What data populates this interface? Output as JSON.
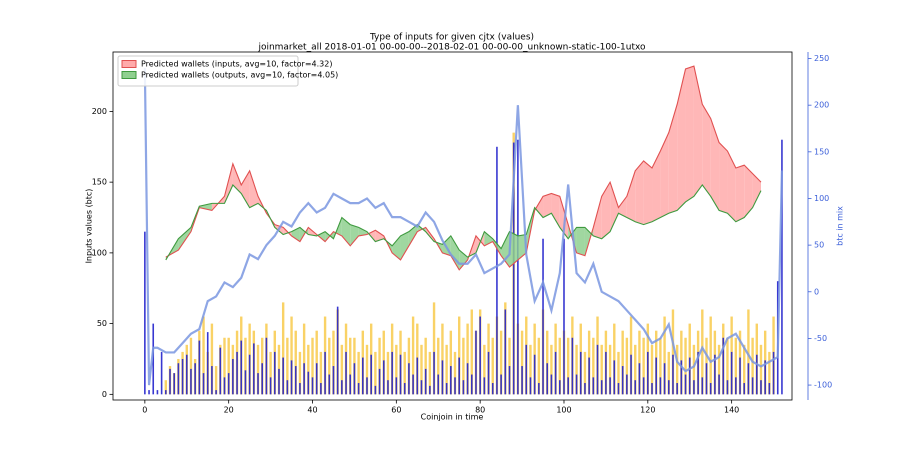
{
  "chart_data": {
    "type": "line",
    "title": "Type of inputs for given cjtx (values)",
    "subtitle": "joinmarket_all 2018-01-01 00-00-00--2018-02-01 00-00-00_unknown-static-100-1utxo",
    "xlabel": "Coinjoin in time",
    "ylabel": "Inputs values (btc)",
    "y2label": "btc in mix",
    "xlim": [
      -7.6,
      154.4
    ],
    "xticks": [
      0,
      20,
      40,
      60,
      80,
      100,
      120,
      140
    ],
    "ylim": [
      -4,
      242
    ],
    "yticks": [
      0,
      50,
      100,
      150,
      200
    ],
    "y2lim": [
      -116,
      257
    ],
    "y2ticks": [
      -100,
      -50,
      0,
      50,
      100,
      150,
      200,
      250
    ],
    "legend": "upper left",
    "series": [
      {
        "name": "Predicted wallets (inputs, avg=10, factor=4.32)",
        "color": "#e05050",
        "fill": "#ffaaaa",
        "x": [
          5,
          8,
          11,
          13,
          16,
          19,
          21,
          23,
          25,
          27,
          29,
          31,
          33,
          35,
          37,
          39,
          41,
          43,
          45,
          47,
          49,
          51,
          53,
          55,
          57,
          59,
          61,
          63,
          65,
          67,
          69,
          71,
          73,
          75,
          77,
          79,
          81,
          83,
          85,
          87,
          89,
          91,
          93,
          95,
          97,
          99,
          101,
          103,
          105,
          107,
          109,
          111,
          113,
          115,
          117,
          119,
          121,
          123,
          125,
          127,
          129,
          131,
          133,
          135,
          137,
          139,
          141,
          143,
          145,
          147
        ],
        "values": [
          97,
          102,
          115,
          132,
          130,
          140,
          163,
          148,
          158,
          140,
          128,
          120,
          118,
          112,
          108,
          118,
          113,
          108,
          115,
          112,
          105,
          112,
          113,
          116,
          112,
          100,
          95,
          105,
          115,
          118,
          110,
          100,
          98,
          88,
          95,
          112,
          105,
          108,
          98,
          90,
          95,
          100,
          130,
          140,
          142,
          140,
          120,
          100,
          98,
          118,
          140,
          150,
          132,
          140,
          158,
          165,
          160,
          172,
          185,
          205,
          230,
          232,
          205,
          195,
          178,
          172,
          160,
          162,
          156,
          150
        ]
      },
      {
        "name": "Predicted wallets (outputs, avg=10, factor=4.05)",
        "color": "#3f9a3f",
        "fill": "#8fd08f",
        "x": [
          5,
          8,
          11,
          13,
          16,
          19,
          21,
          23,
          25,
          27,
          29,
          31,
          33,
          35,
          37,
          39,
          41,
          43,
          45,
          47,
          49,
          51,
          53,
          55,
          57,
          59,
          61,
          63,
          65,
          67,
          69,
          71,
          73,
          75,
          77,
          79,
          81,
          83,
          85,
          87,
          89,
          91,
          93,
          95,
          97,
          99,
          101,
          103,
          105,
          107,
          109,
          111,
          113,
          115,
          117,
          119,
          121,
          123,
          125,
          127,
          129,
          131,
          133,
          135,
          137,
          139,
          141,
          143,
          145,
          147
        ],
        "values": [
          95,
          110,
          118,
          133,
          135,
          135,
          148,
          142,
          132,
          135,
          130,
          118,
          113,
          115,
          118,
          113,
          112,
          115,
          110,
          125,
          120,
          118,
          115,
          108,
          110,
          105,
          112,
          115,
          120,
          115,
          108,
          106,
          112,
          102,
          97,
          100,
          115,
          110,
          103,
          115,
          112,
          113,
          132,
          125,
          128,
          118,
          110,
          118,
          118,
          112,
          110,
          115,
          128,
          125,
          122,
          120,
          122,
          125,
          128,
          130,
          136,
          140,
          148,
          140,
          130,
          128,
          122,
          125,
          132,
          144
        ]
      },
      {
        "color": "#7a96e0",
        "axis": "y2",
        "x": [
          0,
          1,
          2,
          3,
          5,
          7,
          9,
          11,
          13,
          15,
          17,
          19,
          21,
          23,
          25,
          27,
          29,
          31,
          33,
          35,
          37,
          39,
          41,
          43,
          45,
          47,
          49,
          51,
          53,
          55,
          57,
          59,
          61,
          63,
          65,
          67,
          69,
          71,
          73,
          75,
          77,
          79,
          81,
          83,
          85,
          87,
          89,
          91,
          93,
          95,
          97,
          99,
          101,
          103,
          105,
          107,
          109,
          111,
          113,
          115,
          117,
          119,
          121,
          123,
          125,
          127,
          129,
          131,
          133,
          135,
          137,
          139,
          141,
          143,
          145,
          147,
          149,
          151,
          152
        ],
        "values": [
          240,
          -100,
          -60,
          -60,
          -65,
          -65,
          -55,
          -45,
          -40,
          -10,
          -5,
          10,
          5,
          15,
          40,
          35,
          50,
          60,
          75,
          70,
          85,
          95,
          85,
          90,
          105,
          100,
          95,
          95,
          100,
          90,
          95,
          80,
          80,
          75,
          70,
          85,
          75,
          55,
          40,
          30,
          30,
          40,
          20,
          25,
          30,
          40,
          200,
          40,
          -10,
          10,
          -20,
          20,
          115,
          20,
          10,
          30,
          0,
          -5,
          -10,
          -20,
          -30,
          -40,
          -55,
          -50,
          -35,
          -75,
          -85,
          -80,
          -60,
          -75,
          -70,
          -50,
          -45,
          -60,
          -75,
          -80,
          -75,
          -70,
          130
        ]
      }
    ],
    "bars": {
      "x": [
        0,
        1,
        2,
        3,
        4,
        5,
        6,
        7,
        8,
        9,
        10,
        11,
        12,
        13,
        14,
        15,
        16,
        17,
        18,
        19,
        20,
        21,
        22,
        23,
        24,
        25,
        26,
        27,
        28,
        29,
        30,
        31,
        32,
        33,
        34,
        35,
        36,
        37,
        38,
        39,
        40,
        41,
        42,
        43,
        44,
        45,
        46,
        47,
        48,
        49,
        50,
        51,
        52,
        53,
        54,
        55,
        56,
        57,
        58,
        59,
        60,
        61,
        62,
        63,
        64,
        65,
        66,
        67,
        68,
        69,
        70,
        71,
        72,
        73,
        74,
        75,
        76,
        77,
        78,
        79,
        80,
        81,
        82,
        83,
        84,
        85,
        86,
        87,
        88,
        89,
        90,
        91,
        92,
        93,
        94,
        95,
        96,
        97,
        98,
        99,
        100,
        101,
        102,
        103,
        104,
        105,
        106,
        107,
        108,
        109,
        110,
        111,
        112,
        113,
        114,
        115,
        116,
        117,
        118,
        119,
        120,
        121,
        122,
        123,
        124,
        125,
        126,
        127,
        128,
        129,
        130,
        131,
        132,
        133,
        134,
        135,
        136,
        137,
        138,
        139,
        140,
        141,
        142,
        143,
        144,
        145,
        146,
        147,
        148,
        149,
        150,
        151,
        152
      ],
      "series": [
        {
          "color": "#f5b400",
          "values": [
            0,
            0,
            0,
            0,
            0,
            10,
            20,
            15,
            25,
            30,
            35,
            40,
            25,
            45,
            55,
            30,
            50,
            20,
            35,
            40,
            40,
            35,
            45,
            55,
            40,
            50,
            45,
            35,
            40,
            50,
            30,
            45,
            35,
            65,
            40,
            55,
            45,
            30,
            50,
            35,
            40,
            45,
            30,
            55,
            40,
            45,
            60,
            35,
            50,
            40,
            40,
            30,
            45,
            35,
            50,
            30,
            40,
            45,
            30,
            50,
            35,
            45,
            30,
            40,
            55,
            50,
            35,
            40,
            30,
            65,
            40,
            50,
            35,
            45,
            30,
            55,
            40,
            50,
            60,
            45,
            60,
            35,
            50,
            40,
            55,
            45,
            65,
            40,
            185,
            50,
            45,
            55,
            35,
            50,
            40,
            60,
            45,
            35,
            50,
            40,
            45,
            40,
            55,
            35,
            50,
            30,
            45,
            40,
            55,
            35,
            45,
            35,
            50,
            30,
            45,
            40,
            55,
            35,
            45,
            40,
            50,
            35,
            45,
            40,
            55,
            30,
            60,
            35,
            45,
            40,
            50,
            35,
            45,
            60,
            40,
            55,
            45,
            35,
            50,
            40,
            55,
            40,
            45,
            35,
            60,
            40,
            50,
            35,
            45,
            30,
            55,
            0,
            0
          ]
        },
        {
          "color": "#2222cc",
          "values": [
            115,
            3,
            50,
            3,
            30,
            3,
            18,
            15,
            22,
            25,
            28,
            18,
            22,
            38,
            15,
            44,
            20,
            3,
            33,
            12,
            15,
            25,
            30,
            38,
            17,
            28,
            36,
            15,
            22,
            40,
            12,
            30,
            18,
            26,
            10,
            24,
            20,
            8,
            22,
            16,
            12,
            22,
            8,
            30,
            14,
            20,
            62,
            10,
            30,
            14,
            22,
            8,
            26,
            12,
            28,
            6,
            18,
            24,
            10,
            30,
            12,
            28,
            8,
            22,
            14,
            26,
            10,
            18,
            6,
            30,
            14,
            24,
            8,
            20,
            12,
            26,
            10,
            22,
            14,
            45,
            55,
            12,
            30,
            8,
            175,
            14,
            60,
            20,
            178,
            180,
            20,
            35,
            12,
            28,
            8,
            110,
            22,
            14,
            30,
            10,
            110,
            12,
            40,
            14,
            30,
            8,
            26,
            12,
            35,
            10,
            30,
            12,
            24,
            8,
            20,
            14,
            28,
            10,
            22,
            12,
            30,
            8,
            26,
            12,
            22,
            10,
            28,
            8,
            24,
            14,
            26,
            10,
            30,
            12,
            22,
            8,
            28,
            14,
            40,
            10,
            30,
            12,
            26,
            8,
            22,
            12,
            28,
            10,
            24,
            8,
            30,
            80,
            180
          ]
        }
      ]
    }
  }
}
